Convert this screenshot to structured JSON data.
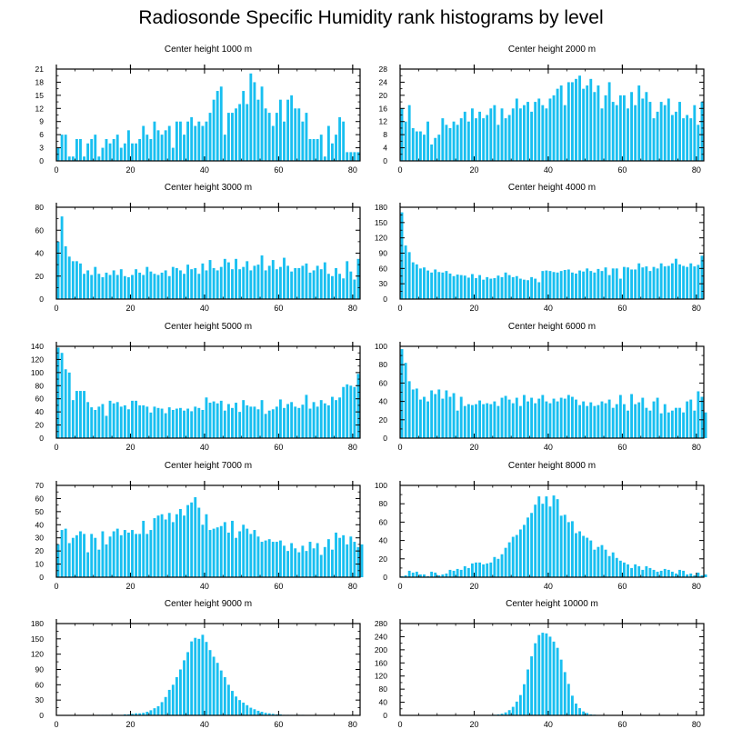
{
  "page_title": "Radiosonde Specific Humidity rank histograms by level",
  "bar_color": "#18bff0",
  "chart_data": [
    {
      "type": "bar",
      "title": "Center height 1000 m",
      "xlabel": "",
      "ylabel": "",
      "xlim": [
        0,
        82
      ],
      "xticks": [
        0,
        20,
        40,
        60,
        80
      ],
      "ylim": [
        0,
        21
      ],
      "yticks": [
        0,
        3,
        6,
        9,
        12,
        15,
        18,
        21
      ],
      "values": [
        3,
        6,
        6,
        1,
        1,
        5,
        5,
        1,
        4,
        5,
        6,
        1,
        3,
        5,
        4,
        5,
        6,
        3,
        4,
        7,
        4,
        4,
        5,
        8,
        6,
        5,
        9,
        7,
        6,
        7,
        8,
        3,
        9,
        9,
        6,
        9,
        10,
        8,
        9,
        8,
        9,
        11,
        14,
        16,
        17,
        6,
        11,
        11,
        12,
        13,
        16,
        13,
        20,
        18,
        14,
        17,
        12,
        11,
        8,
        11,
        14,
        9,
        14,
        15,
        12,
        12,
        9,
        11,
        5,
        5,
        5,
        6,
        1,
        8,
        4,
        6,
        10,
        9,
        2,
        2,
        2,
        2
      ]
    },
    {
      "type": "bar",
      "title": "Center height 2000 m",
      "xlabel": "",
      "ylabel": "",
      "xlim": [
        0,
        82
      ],
      "xticks": [
        0,
        20,
        40,
        60,
        80
      ],
      "ylim": [
        0,
        28
      ],
      "yticks": [
        0,
        4,
        8,
        12,
        16,
        20,
        24,
        28
      ],
      "values": [
        16,
        12,
        17,
        10,
        9,
        9,
        8,
        12,
        5,
        7,
        8,
        13,
        11,
        10,
        12,
        11,
        13,
        15,
        12,
        16,
        13,
        15,
        13,
        14,
        16,
        17,
        11,
        16,
        13,
        14,
        16,
        19,
        16,
        17,
        18,
        15,
        18,
        19,
        17,
        16,
        19,
        20,
        22,
        23,
        17,
        24,
        24,
        25,
        26,
        22,
        23,
        25,
        21,
        23,
        16,
        20,
        24,
        18,
        17,
        20,
        20,
        16,
        21,
        17,
        23,
        19,
        21,
        18,
        13,
        15,
        18,
        17,
        19,
        14,
        15,
        18,
        13,
        14,
        13,
        17,
        11,
        18
      ]
    },
    {
      "type": "bar",
      "title": "Center height 3000 m",
      "xlabel": "",
      "ylabel": "",
      "xlim": [
        0,
        82
      ],
      "xticks": [
        0,
        20,
        40,
        60,
        80
      ],
      "ylim": [
        0,
        80
      ],
      "yticks": [
        0,
        20,
        40,
        60,
        80
      ],
      "values": [
        50,
        72,
        46,
        37,
        33,
        33,
        31,
        22,
        25,
        21,
        28,
        22,
        19,
        23,
        21,
        25,
        21,
        26,
        20,
        19,
        21,
        26,
        23,
        21,
        28,
        24,
        22,
        21,
        23,
        25,
        20,
        28,
        27,
        25,
        22,
        30,
        26,
        27,
        22,
        31,
        25,
        34,
        27,
        25,
        28,
        35,
        32,
        26,
        35,
        26,
        28,
        33,
        25,
        29,
        30,
        38,
        25,
        29,
        34,
        26,
        28,
        36,
        29,
        24,
        27,
        27,
        29,
        31,
        23,
        25,
        29,
        26,
        32,
        22,
        20,
        27,
        22,
        18,
        33,
        24,
        17,
        35
      ]
    },
    {
      "type": "bar",
      "title": "Center height 4000 m",
      "xlabel": "",
      "ylabel": "",
      "xlim": [
        0,
        82
      ],
      "xticks": [
        0,
        20,
        40,
        60,
        80
      ],
      "ylim": [
        0,
        180
      ],
      "yticks": [
        0,
        30,
        60,
        90,
        120,
        150,
        180
      ],
      "values": [
        170,
        105,
        92,
        72,
        68,
        60,
        62,
        56,
        52,
        58,
        53,
        52,
        55,
        50,
        45,
        48,
        47,
        46,
        42,
        49,
        41,
        47,
        38,
        43,
        40,
        41,
        46,
        43,
        52,
        47,
        43,
        45,
        40,
        38,
        37,
        43,
        40,
        33,
        55,
        56,
        55,
        53,
        52,
        55,
        57,
        58,
        52,
        50,
        56,
        54,
        60,
        55,
        52,
        59,
        55,
        62,
        47,
        60,
        60,
        40,
        63,
        62,
        58,
        58,
        70,
        62,
        64,
        55,
        63,
        60,
        70,
        64,
        65,
        70,
        79,
        68,
        65,
        63,
        70,
        64,
        67,
        85
      ]
    },
    {
      "type": "bar",
      "title": "Center height 5000 m",
      "xlabel": "",
      "ylabel": "",
      "xlim": [
        0,
        82
      ],
      "xticks": [
        0,
        20,
        40,
        60,
        80
      ],
      "ylim": [
        0,
        140
      ],
      "yticks": [
        0,
        20,
        40,
        60,
        80,
        100,
        120,
        140
      ],
      "values": [
        138,
        130,
        105,
        100,
        58,
        72,
        72,
        72,
        55,
        47,
        43,
        48,
        52,
        34,
        57,
        53,
        55,
        48,
        50,
        44,
        57,
        57,
        50,
        50,
        48,
        39,
        48,
        46,
        45,
        38,
        47,
        43,
        45,
        46,
        42,
        45,
        41,
        48,
        46,
        43,
        62,
        54,
        56,
        53,
        57,
        42,
        52,
        46,
        54,
        40,
        58,
        50,
        48,
        48,
        44,
        58,
        37,
        42,
        44,
        48,
        59,
        46,
        52,
        55,
        48,
        46,
        51,
        66,
        45,
        55,
        48,
        58,
        53,
        50,
        63,
        58,
        62,
        78,
        82,
        80,
        78,
        98
      ]
    },
    {
      "type": "bar",
      "title": "Center height 6000 m",
      "xlabel": "",
      "ylabel": "",
      "xlim": [
        0,
        82
      ],
      "xticks": [
        0,
        20,
        40,
        60,
        80
      ],
      "ylim": [
        0,
        100
      ],
      "yticks": [
        0,
        20,
        40,
        60,
        80,
        100
      ],
      "values": [
        97,
        82,
        62,
        53,
        54,
        42,
        45,
        40,
        52,
        48,
        53,
        43,
        52,
        45,
        49,
        30,
        45,
        35,
        37,
        36,
        37,
        41,
        37,
        38,
        37,
        40,
        35,
        44,
        46,
        42,
        38,
        44,
        35,
        47,
        40,
        44,
        38,
        43,
        47,
        40,
        38,
        43,
        40,
        44,
        43,
        47,
        45,
        42,
        36,
        40,
        35,
        39,
        35,
        36,
        40,
        38,
        42,
        33,
        37,
        47,
        37,
        30,
        48,
        37,
        39,
        44,
        33,
        30,
        40,
        44,
        27,
        37,
        28,
        30,
        33,
        33,
        28,
        40,
        42,
        30,
        51,
        45,
        28
      ]
    },
    {
      "type": "bar",
      "title": "Center height 7000 m",
      "xlabel": "",
      "ylabel": "",
      "xlim": [
        0,
        82
      ],
      "xticks": [
        0,
        20,
        40,
        60,
        80
      ],
      "ylim": [
        0,
        70
      ],
      "yticks": [
        0,
        10,
        20,
        30,
        40,
        50,
        60,
        70
      ],
      "values": [
        25,
        36,
        37,
        26,
        30,
        32,
        35,
        33,
        19,
        33,
        30,
        21,
        35,
        25,
        31,
        35,
        37,
        32,
        36,
        34,
        36,
        33,
        33,
        43,
        33,
        36,
        45,
        47,
        48,
        44,
        49,
        42,
        48,
        52,
        47,
        55,
        57,
        61,
        53,
        40,
        48,
        36,
        37,
        38,
        39,
        42,
        34,
        43,
        30,
        35,
        40,
        37,
        33,
        36,
        31,
        27,
        28,
        29,
        27,
        27,
        28,
        24,
        20,
        26,
        22,
        19,
        24,
        20,
        27,
        22,
        26,
        17,
        23,
        29,
        21,
        34,
        30,
        32,
        25,
        31,
        27,
        23,
        25
      ]
    },
    {
      "type": "bar",
      "title": "Center height 8000 m",
      "xlabel": "",
      "ylabel": "",
      "xlim": [
        0,
        82
      ],
      "xticks": [
        0,
        20,
        40,
        60,
        80
      ],
      "ylim": [
        0,
        100
      ],
      "yticks": [
        0,
        20,
        40,
        60,
        80,
        100
      ],
      "values": [
        1,
        2,
        7,
        5,
        6,
        3,
        3,
        1,
        6,
        5,
        2,
        3,
        4,
        8,
        7,
        9,
        8,
        12,
        10,
        15,
        16,
        16,
        14,
        15,
        16,
        22,
        20,
        25,
        32,
        38,
        44,
        46,
        52,
        57,
        65,
        70,
        79,
        88,
        80,
        88,
        77,
        89,
        85,
        67,
        68,
        60,
        61,
        48,
        50,
        45,
        43,
        40,
        30,
        33,
        35,
        30,
        23,
        27,
        21,
        18,
        16,
        14,
        10,
        14,
        12,
        8,
        12,
        10,
        8,
        6,
        7,
        9,
        8,
        6,
        4,
        8,
        7,
        3,
        4,
        2,
        5,
        2,
        3
      ]
    },
    {
      "type": "bar",
      "title": "Center height 9000 m",
      "xlabel": "",
      "ylabel": "",
      "xlim": [
        0,
        82
      ],
      "xticks": [
        0,
        20,
        40,
        60,
        80
      ],
      "ylim": [
        0,
        180
      ],
      "yticks": [
        0,
        30,
        60,
        90,
        120,
        150,
        180
      ],
      "values": [
        0,
        0,
        0,
        0,
        0,
        0,
        0,
        0,
        0,
        0,
        0,
        1,
        1,
        1,
        1,
        1,
        1,
        1,
        2,
        2,
        3,
        4,
        4,
        5,
        7,
        10,
        14,
        18,
        26,
        36,
        50,
        60,
        75,
        90,
        108,
        124,
        145,
        152,
        150,
        158,
        144,
        128,
        115,
        103,
        88,
        75,
        60,
        48,
        37,
        30,
        25,
        20,
        15,
        12,
        9,
        7,
        5,
        4,
        3,
        2,
        2,
        1,
        1,
        1,
        1,
        1,
        1,
        0,
        0,
        0,
        0,
        0,
        0,
        0,
        0,
        0,
        0,
        0,
        0,
        0,
        0,
        0
      ]
    },
    {
      "type": "bar",
      "title": "Center height 10000 m",
      "xlabel": "",
      "ylabel": "",
      "xlim": [
        0,
        82
      ],
      "xticks": [
        0,
        20,
        40,
        60,
        80
      ],
      "ylim": [
        0,
        280
      ],
      "yticks": [
        0,
        40,
        80,
        120,
        160,
        200,
        240,
        280
      ],
      "values": [
        0,
        0,
        0,
        0,
        0,
        0,
        0,
        0,
        0,
        0,
        0,
        0,
        0,
        0,
        0,
        0,
        0,
        0,
        0,
        0,
        0,
        0,
        1,
        1,
        1,
        2,
        3,
        5,
        9,
        16,
        26,
        42,
        62,
        95,
        140,
        180,
        220,
        245,
        252,
        250,
        240,
        225,
        206,
        170,
        132,
        96,
        60,
        36,
        22,
        12,
        7,
        3,
        2,
        1,
        1,
        0,
        0,
        0,
        0,
        0,
        0,
        0,
        0,
        0,
        0,
        0,
        0,
        0,
        0,
        0,
        0,
        0,
        0,
        0,
        0,
        0,
        0,
        0,
        0,
        0,
        0,
        0
      ]
    }
  ]
}
